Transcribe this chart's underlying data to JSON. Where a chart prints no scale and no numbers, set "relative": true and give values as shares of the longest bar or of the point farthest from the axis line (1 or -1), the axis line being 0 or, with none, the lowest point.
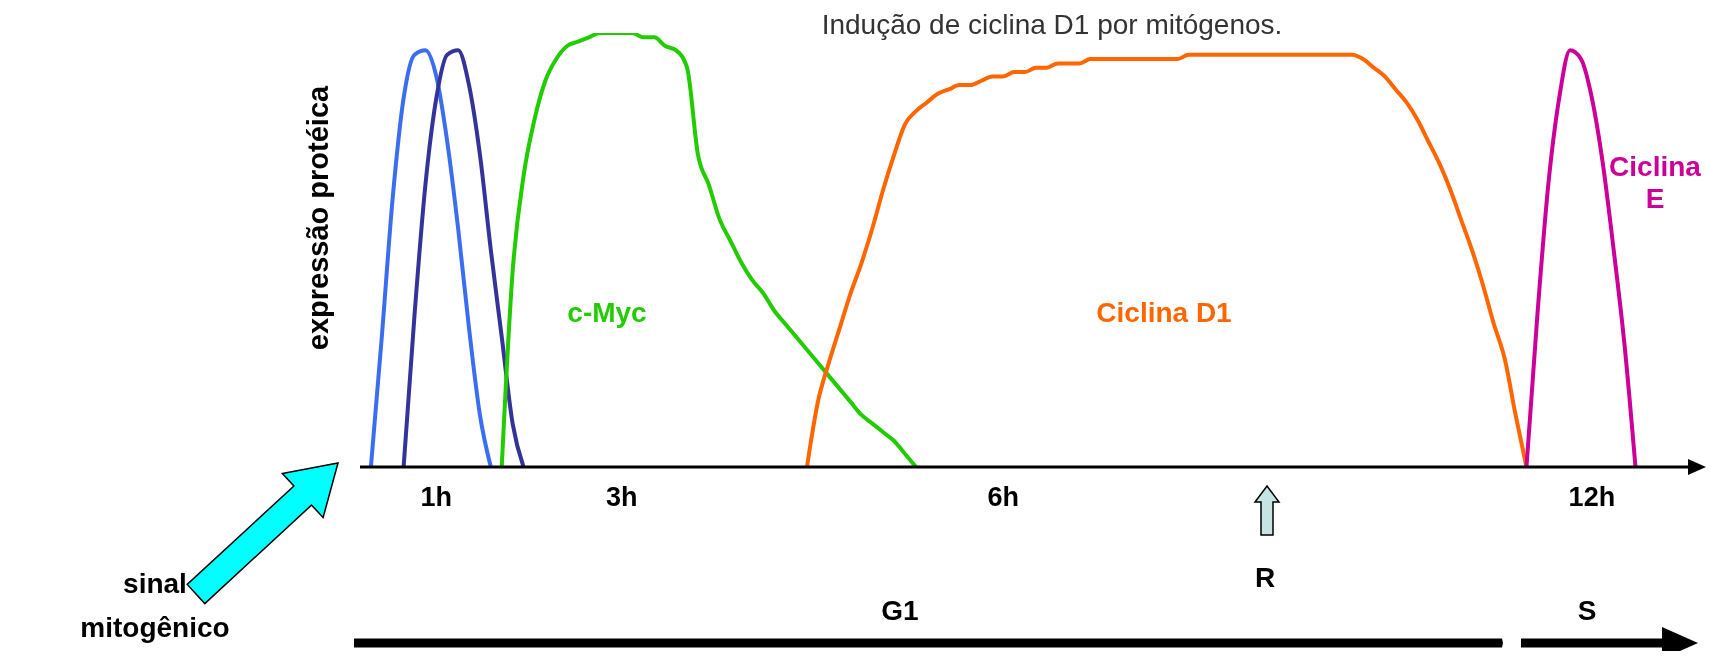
{
  "chart_data": {
    "type": "line",
    "relative": true,
    "title": "Indução de ciclina D1 por mitógenos.",
    "ylabel": "expressão protéica",
    "marker": "none",
    "line_style": "solid",
    "categories": [
      null,
      null,
      null,
      null,
      null,
      null,
      null,
      "1h",
      null,
      null,
      null,
      null,
      null,
      null,
      null,
      null,
      null,
      null,
      null,
      null,
      null,
      null,
      null,
      null,
      "3h",
      null,
      null,
      null,
      null,
      null,
      null,
      null,
      null,
      null,
      null,
      null,
      null,
      null,
      null,
      null,
      null,
      null,
      null,
      null,
      null,
      null,
      null,
      null,
      null,
      null,
      null,
      null,
      null,
      null,
      null,
      null,
      null,
      null,
      null,
      "6h",
      null,
      null,
      null,
      null,
      null,
      null,
      null,
      null,
      null,
      null,
      null,
      null,
      null,
      null,
      null,
      null,
      null,
      null,
      null,
      null,
      null,
      null,
      null,
      null,
      null,
      null,
      null,
      null,
      null,
      null,
      null,
      null,
      null,
      null,
      null,
      null,
      null,
      null,
      null,
      null,
      null,
      null,
      null,
      null,
      null,
      null,
      null,
      null,
      null,
      null,
      null,
      null,
      null,
      "12h",
      null,
      null,
      null,
      null,
      null,
      null,
      null,
      null,
      null
    ],
    "series": [
      {
        "color": "#3a6df0",
        "values": [
          null,
          0,
          0.3,
          0.62,
          0.85,
          0.95,
          0.96,
          0.9,
          0.75,
          0.55,
          0.32,
          0.12,
          0,
          null,
          null,
          null,
          null,
          null,
          null,
          null,
          null,
          null,
          null,
          null,
          null,
          null,
          null,
          null,
          null,
          null,
          null,
          null,
          null,
          null,
          null,
          null,
          null,
          null,
          null,
          null,
          null,
          null,
          null,
          null,
          null,
          null,
          null,
          null,
          null,
          null,
          null,
          null,
          null,
          null,
          null,
          null,
          null,
          null,
          null,
          null,
          null,
          null,
          null,
          null,
          null,
          null,
          null,
          null,
          null,
          null,
          null,
          null,
          null,
          null,
          null,
          null,
          null,
          null,
          null,
          null,
          null,
          null,
          null,
          null,
          null,
          null,
          null,
          null,
          null,
          null,
          null,
          null,
          null,
          null,
          null,
          null,
          null,
          null,
          null,
          null,
          null,
          null,
          null,
          null,
          null,
          null,
          null,
          null,
          null,
          null,
          null,
          null,
          null,
          null,
          null,
          null,
          null,
          null,
          null,
          null,
          null,
          null,
          null
        ]
      },
      {
        "color": "#333399",
        "values": [
          null,
          null,
          null,
          null,
          0,
          0.35,
          0.65,
          0.85,
          0.95,
          0.96,
          0.88,
          0.72,
          0.5,
          0.3,
          0.1,
          0,
          null,
          null,
          null,
          null,
          null,
          null,
          null,
          null,
          null,
          null,
          null,
          null,
          null,
          null,
          null,
          null,
          null,
          null,
          null,
          null,
          null,
          null,
          null,
          null,
          null,
          null,
          null,
          null,
          null,
          null,
          null,
          null,
          null,
          null,
          null,
          null,
          null,
          null,
          null,
          null,
          null,
          null,
          null,
          null,
          null,
          null,
          null,
          null,
          null,
          null,
          null,
          null,
          null,
          null,
          null,
          null,
          null,
          null,
          null,
          null,
          null,
          null,
          null,
          null,
          null,
          null,
          null,
          null,
          null,
          null,
          null,
          null,
          null,
          null,
          null,
          null,
          null,
          null,
          null,
          null,
          null,
          null,
          null,
          null,
          null,
          null,
          null,
          null,
          null,
          null,
          null,
          null,
          null,
          null,
          null,
          null,
          null,
          null,
          null,
          null,
          null,
          null,
          null,
          null,
          null,
          null,
          null
        ]
      },
      {
        "name": "c-Myc",
        "color": "#22cc00",
        "values": [
          null,
          null,
          null,
          null,
          null,
          null,
          null,
          null,
          null,
          null,
          null,
          null,
          null,
          0,
          0.45,
          0.67,
          0.8,
          0.89,
          0.94,
          0.97,
          0.98,
          0.99,
          1,
          1,
          1,
          1,
          0.99,
          0.99,
          0.97,
          0.96,
          0.92,
          0.72,
          0.65,
          0.57,
          0.52,
          0.47,
          0.43,
          0.4,
          0.36,
          0.33,
          0.3,
          0.27,
          0.24,
          0.21,
          0.18,
          0.15,
          0.12,
          0.1,
          0.08,
          0.06,
          0.03,
          0,
          null,
          null,
          null,
          null,
          null,
          null,
          null,
          null,
          null,
          null,
          null,
          null,
          null,
          null,
          null,
          null,
          null,
          null,
          null,
          null,
          null,
          null,
          null,
          null,
          null,
          null,
          null,
          null,
          null,
          null,
          null,
          null,
          null,
          null,
          null,
          null,
          null,
          null,
          null,
          null,
          null,
          null,
          null,
          null,
          null,
          null,
          null,
          null,
          null,
          null,
          null,
          null,
          null,
          null,
          null,
          null,
          null,
          null,
          null,
          null,
          null,
          null,
          null,
          null,
          null,
          null,
          null,
          null,
          null,
          null,
          null
        ]
      },
      {
        "name": "Ciclina D1",
        "color": "#ff6600",
        "values": [
          null,
          null,
          null,
          null,
          null,
          null,
          null,
          null,
          null,
          null,
          null,
          null,
          null,
          null,
          null,
          null,
          null,
          null,
          null,
          null,
          null,
          null,
          null,
          null,
          null,
          null,
          null,
          null,
          null,
          null,
          null,
          null,
          null,
          null,
          null,
          null,
          null,
          null,
          null,
          null,
          null,
          0,
          0.15,
          0.24,
          0.32,
          0.4,
          0.47,
          0.55,
          0.64,
          0.72,
          0.79,
          0.82,
          0.84,
          0.86,
          0.87,
          0.88,
          0.88,
          0.89,
          0.9,
          0.9,
          0.91,
          0.91,
          0.92,
          0.92,
          0.93,
          0.93,
          0.93,
          0.94,
          0.94,
          0.94,
          0.94,
          0.94,
          0.94,
          0.94,
          0.94,
          0.94,
          0.95,
          0.95,
          0.95,
          0.95,
          0.95,
          0.95,
          0.95,
          0.95,
          0.95,
          0.95,
          0.95,
          0.95,
          0.95,
          0.95,
          0.95,
          0.95,
          0.94,
          0.92,
          0.9,
          0.87,
          0.84,
          0.8,
          0.75,
          0.7,
          0.64,
          0.57,
          0.5,
          0.42,
          0.33,
          0.25,
          0.12,
          0,
          null,
          null,
          null,
          null,
          null,
          null,
          null,
          null,
          null,
          null,
          null,
          null,
          null,
          null,
          null
        ]
      },
      {
        "name": "Ciclina E",
        "color": "#cc0099",
        "values": [
          null,
          null,
          null,
          null,
          null,
          null,
          null,
          null,
          null,
          null,
          null,
          null,
          null,
          null,
          null,
          null,
          null,
          null,
          null,
          null,
          null,
          null,
          null,
          null,
          null,
          null,
          null,
          null,
          null,
          null,
          null,
          null,
          null,
          null,
          null,
          null,
          null,
          null,
          null,
          null,
          null,
          null,
          null,
          null,
          null,
          null,
          null,
          null,
          null,
          null,
          null,
          null,
          null,
          null,
          null,
          null,
          null,
          null,
          null,
          null,
          null,
          null,
          null,
          null,
          null,
          null,
          null,
          null,
          null,
          null,
          null,
          null,
          null,
          null,
          null,
          null,
          null,
          null,
          null,
          null,
          null,
          null,
          null,
          null,
          null,
          null,
          null,
          null,
          null,
          null,
          null,
          null,
          null,
          null,
          null,
          null,
          null,
          null,
          null,
          null,
          null,
          null,
          null,
          null,
          null,
          null,
          null,
          0,
          0.35,
          0.65,
          0.85,
          0.96,
          0.94,
          0.85,
          0.7,
          0.5,
          0.28,
          0,
          null,
          null,
          null,
          null,
          null
        ]
      }
    ],
    "annotations": [
      "R",
      "G1",
      "S",
      "sinal mitogênico"
    ]
  }
}
